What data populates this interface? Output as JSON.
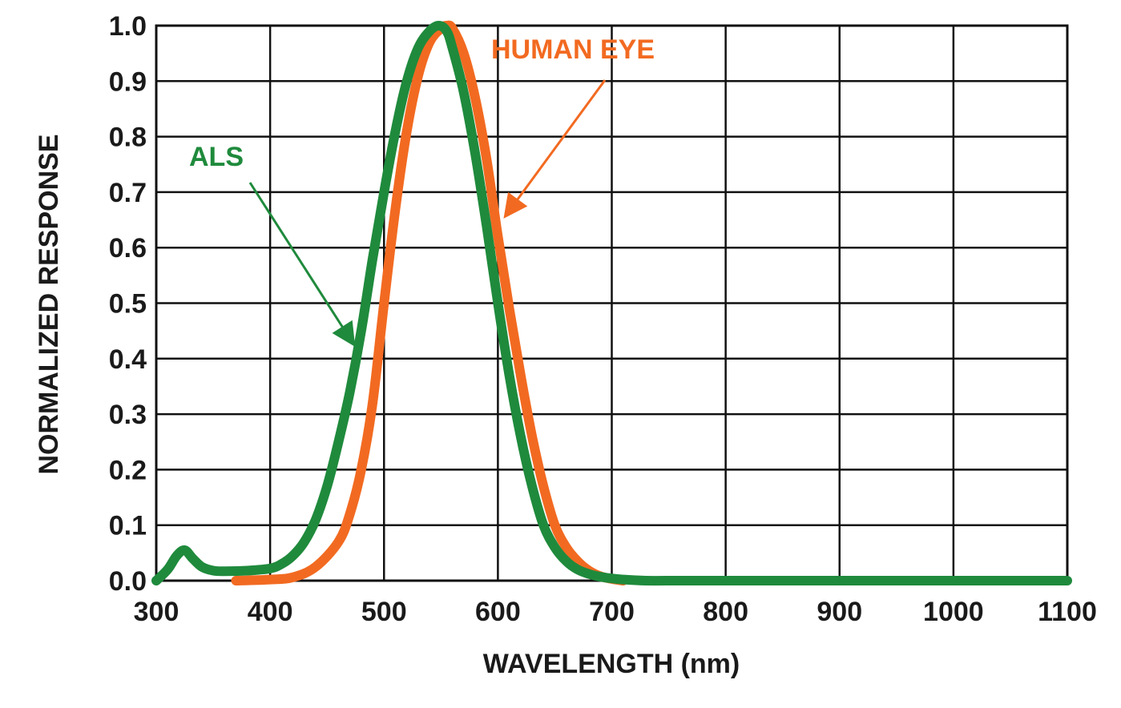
{
  "colors": {
    "als": "#1f8a3c",
    "human_eye": "#f26a21",
    "grid": "#111111",
    "text": "#1a1a1a"
  },
  "chart_data": {
    "type": "line",
    "xlabel": "WAVELENGTH (nm)",
    "ylabel": "NORMALIZED RESPONSE",
    "xlim": [
      300,
      1100
    ],
    "ylim": [
      0,
      1.0
    ],
    "x_ticks": [
      300,
      400,
      500,
      600,
      700,
      800,
      900,
      1000,
      1100
    ],
    "y_ticks": [
      0.0,
      0.1,
      0.2,
      0.3,
      0.4,
      0.5,
      0.6,
      0.7,
      0.8,
      0.9,
      1.0
    ],
    "x_tick_labels": [
      "300",
      "400",
      "500",
      "600",
      "700",
      "800",
      "900",
      "1000",
      "1100"
    ],
    "y_tick_labels": [
      "0.0",
      "0.1",
      "0.2",
      "0.3",
      "0.4",
      "0.5",
      "0.6",
      "0.7",
      "0.8",
      "0.9",
      "1.0"
    ],
    "grid": true,
    "series": [
      {
        "name": "HUMAN EYE",
        "color": "#f26a21",
        "x": [
          370,
          400,
          420,
          440,
          460,
          470,
          480,
          490,
          500,
          510,
          520,
          530,
          540,
          550,
          555,
          560,
          570,
          580,
          590,
          600,
          610,
          620,
          630,
          640,
          650,
          660,
          670,
          680,
          690,
          700,
          710
        ],
        "y": [
          0.0,
          0.002,
          0.006,
          0.025,
          0.07,
          0.12,
          0.2,
          0.32,
          0.5,
          0.67,
          0.81,
          0.91,
          0.97,
          0.995,
          1.0,
          0.995,
          0.95,
          0.87,
          0.76,
          0.62,
          0.49,
          0.37,
          0.26,
          0.17,
          0.1,
          0.06,
          0.035,
          0.018,
          0.008,
          0.003,
          0.0
        ]
      },
      {
        "name": "ALS",
        "color": "#1f8a3c",
        "x": [
          300,
          310,
          318,
          325,
          332,
          340,
          350,
          360,
          380,
          400,
          410,
          420,
          430,
          440,
          450,
          460,
          470,
          480,
          490,
          500,
          510,
          520,
          530,
          540,
          548,
          555,
          560,
          570,
          580,
          590,
          600,
          610,
          620,
          630,
          640,
          650,
          660,
          670,
          680,
          690,
          700,
          710,
          730,
          760,
          800,
          900,
          1000,
          1100
        ],
        "y": [
          0.0,
          0.02,
          0.045,
          0.055,
          0.04,
          0.025,
          0.018,
          0.017,
          0.018,
          0.022,
          0.03,
          0.045,
          0.07,
          0.11,
          0.17,
          0.25,
          0.34,
          0.45,
          0.58,
          0.7,
          0.81,
          0.9,
          0.96,
          0.99,
          1.0,
          0.99,
          0.96,
          0.88,
          0.77,
          0.64,
          0.5,
          0.37,
          0.26,
          0.17,
          0.1,
          0.06,
          0.035,
          0.02,
          0.012,
          0.007,
          0.004,
          0.002,
          0.0,
          0.0,
          0.0,
          0.0,
          0.0,
          0.0
        ]
      }
    ],
    "annotations": [
      {
        "text": "HUMAN EYE",
        "color": "#f26a21",
        "points_to": [
          628,
          0.66
        ]
      },
      {
        "text": "ALS",
        "color": "#1f8a3c",
        "points_to": [
          448,
          0.42
        ]
      }
    ]
  }
}
